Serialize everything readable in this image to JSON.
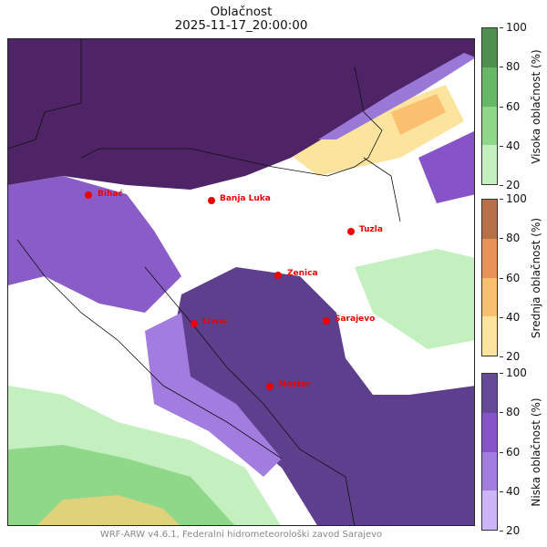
{
  "title": "Oblačnost",
  "timestamp": "2025-11-17_20:00:00",
  "footer": "WRF-ARW v4.6.1, Federalni hidrometeorološki zavod Sarajevo",
  "colorbars": [
    {
      "label": "Visoka oblačnost (%)",
      "ticks": [
        "100",
        "80",
        "60",
        "40",
        "20"
      ],
      "colors": [
        "#4f8f50",
        "#66b866",
        "#8fd88a",
        "#c4f0c0"
      ]
    },
    {
      "label": "Srednja oblačnost (%)",
      "ticks": [
        "100",
        "80",
        "60",
        "40",
        "20"
      ],
      "colors": [
        "#b87048",
        "#e8925a",
        "#fbbf70",
        "#fde49e"
      ]
    },
    {
      "label": "Niska oblačnost (%)",
      "ticks": [
        "100",
        "80",
        "60",
        "40",
        "20"
      ],
      "colors": [
        "#654a98",
        "#8654c8",
        "#a37ce0",
        "#cdb6f8"
      ]
    }
  ],
  "cities": [
    {
      "name": "Bihać"
    },
    {
      "name": "Banja Luka"
    },
    {
      "name": "Tuzla"
    },
    {
      "name": "Zenica"
    },
    {
      "name": "Livno"
    },
    {
      "name": "Sarajevo"
    },
    {
      "name": "Mostar"
    }
  ]
}
